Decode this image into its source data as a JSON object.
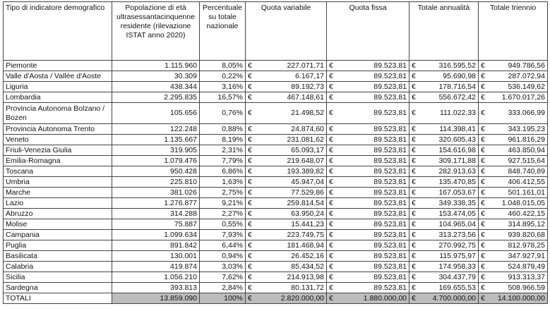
{
  "table": {
    "currency": "€",
    "header": [
      "Tipo di indicatore demografico",
      "Popolazione di età ultrasessantacinquenne residente (rilevazione ISTAT anno 2020)",
      "Percentuale su totale nazionale",
      "Quota variabile",
      "Quota fissa",
      "Totale annualità",
      "Totale triennio"
    ],
    "rows": [
      [
        "Piemonte",
        "1.115.960",
        "8,05%",
        "227.071,71",
        "89.523,81",
        "316.595,52",
        "949.786,56"
      ],
      [
        "Valle d'Aosta / Vallée d'Aoste",
        "30.309",
        "0,22%",
        "6.167,17",
        "89.523,81",
        "95.690,98",
        "287.072,94"
      ],
      [
        "Liguria",
        "438.344",
        "3,16%",
        "89.192,73",
        "89.523,81",
        "178.716,54",
        "536.149,62"
      ],
      [
        "Lombardia",
        "2.295.835",
        "16,57%",
        "467.148,61",
        "89.523,81",
        "556.672,42",
        "1.670.017,26"
      ],
      [
        "Provincia Autonoma Bolzano / Bozen",
        "105.656",
        "0,76%",
        "21.498,52",
        "89.523,81",
        "111.022,33",
        "333.066,99"
      ],
      [
        "Provincia Autonoma Trento",
        "122.248",
        "0,88%",
        "24.874,60",
        "89.523,81",
        "114.398,41",
        "343.195,23"
      ],
      [
        "Veneto",
        "1.135.667",
        "8,19%",
        "231.081,62",
        "89.523,81",
        "320.605,43",
        "961.816,29"
      ],
      [
        "Friuli-Venezia Giulia",
        "319.905",
        "2,31%",
        "65.093,17",
        "89.523,81",
        "154.616,98",
        "463.850,94"
      ],
      [
        "Emilia-Romagna",
        "1.079.476",
        "7,79%",
        "219.648,07",
        "89.523,81",
        "309.171,88",
        "927.515,64"
      ],
      [
        "Toscana",
        "950.428",
        "6,86%",
        "193.389,82",
        "89.523,81",
        "282.913,63",
        "848.740,89"
      ],
      [
        "Umbria",
        "225.810",
        "1,63%",
        "45.947,04",
        "89.523,81",
        "135.470,85",
        "406.412,55"
      ],
      [
        "Marche",
        "381.026",
        "2,75%",
        "77.529,86",
        "89.523,81",
        "167.053,67",
        "501.161,01"
      ],
      [
        "Lazio",
        "1.276.877",
        "9,21%",
        "259.814,54",
        "89.523,81",
        "349.338,35",
        "1.048.015,05"
      ],
      [
        "Abruzzo",
        "314.288",
        "2,27%",
        "63.950,24",
        "89.523,81",
        "153.474,05",
        "460.422,15"
      ],
      [
        "Molise",
        "75.887",
        "0,55%",
        "15.441,23",
        "89.523,81",
        "104.965,04",
        "314.895,12"
      ],
      [
        "Campania",
        "1.099.634",
        "7,93%",
        "223.749,75",
        "89.523,81",
        "313.273,56",
        "939.820,68"
      ],
      [
        "Puglia",
        "891.842",
        "6,44%",
        "181.468,94",
        "89.523,81",
        "270.992,75",
        "812.978,25"
      ],
      [
        "Basilicata",
        "130.001",
        "0,94%",
        "26.452,16",
        "89.523,81",
        "115.975,97",
        "347.927,91"
      ],
      [
        "Calabria",
        "419.874",
        "3,03%",
        "85.434,52",
        "89.523,81",
        "174.958,33",
        "524.879,49"
      ],
      [
        "Sicilia",
        "1.056.210",
        "7,62%",
        "214.913,98",
        "89.523,81",
        "304.437,79",
        "913.313,37"
      ],
      [
        "Sardegna",
        "393.813",
        "2,84%",
        "80.131,72",
        "89.523,81",
        "169.655,53",
        "508.966,59"
      ]
    ],
    "totals": [
      "TOTALI",
      "13.859.090",
      "100%",
      "2.820.000,00",
      "1.880.000,00",
      "4.700.000,00",
      "14.100.000,00"
    ]
  }
}
